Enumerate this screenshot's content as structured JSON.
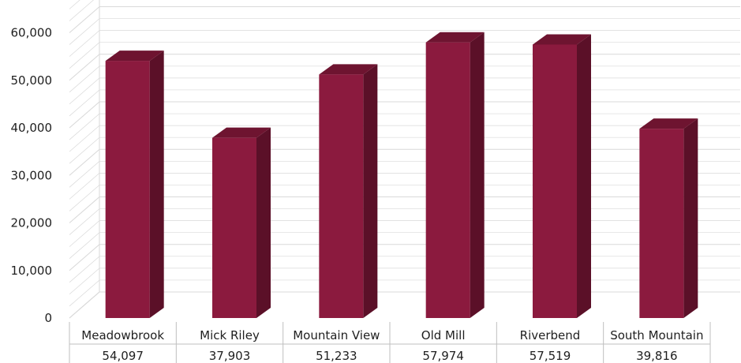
{
  "chart_data": {
    "type": "bar",
    "title": "",
    "xlabel": "",
    "ylabel": "",
    "categories": [
      "Meadowbrook",
      "Mick Riley",
      "Mountain View",
      "Old Mill",
      "Riverbend",
      "South Mountain"
    ],
    "values": [
      54097,
      37903,
      51233,
      57974,
      57519,
      39816
    ],
    "value_labels": [
      "54,097",
      "37,903",
      "51,233",
      "57,974",
      "57,519",
      "39,816"
    ],
    "yticks": [
      "0",
      "10,000",
      "20,000",
      "30,000",
      "40,000",
      "50,000",
      "60,000"
    ],
    "ylim": [
      0,
      65000
    ],
    "grid": true,
    "style": "3d-column",
    "data_table": true,
    "colors": {
      "bar_front": "#8b1a3e",
      "bar_side": "#5b1028",
      "bar_top": "#6e1430",
      "grid": "#d9d9d9",
      "table_line": "#bfbfbf"
    }
  }
}
